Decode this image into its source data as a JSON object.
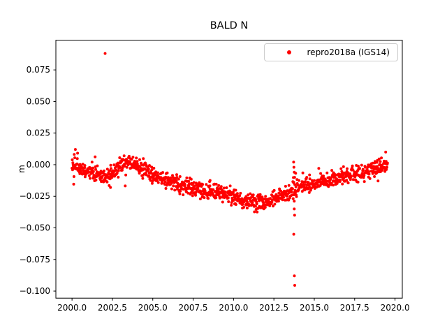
{
  "figure": {
    "title": "BALD N",
    "ylabel": "m",
    "background": "#ffffff"
  },
  "legend": {
    "label": "repro2018a (IGS14)",
    "marker_color": "#ff0000"
  },
  "chart_data": {
    "type": "scatter",
    "title": "BALD N",
    "xlabel": "",
    "ylabel": "m",
    "series_name": "repro2018a (IGS14)",
    "legend_position": "upper right",
    "grid": false,
    "marker": {
      "shape": "dot",
      "color": "#ff0000",
      "radius_px": 2
    },
    "xlim": [
      1999.0,
      2020.45
    ],
    "ylim": [
      -0.1056,
      0.0985
    ],
    "xticks": [
      2000.0,
      2002.5,
      2005.0,
      2007.5,
      2010.0,
      2012.5,
      2015.0,
      2017.5,
      2020.0
    ],
    "xtick_labels": [
      "2000.0",
      "2002.5",
      "2005.0",
      "2007.5",
      "2010.0",
      "2012.5",
      "2015.0",
      "2017.5",
      "2020.0"
    ],
    "yticks": [
      0.075,
      0.05,
      0.025,
      0.0,
      -0.025,
      -0.05,
      -0.075,
      -0.1
    ],
    "ytick_labels": [
      "0.075",
      "0.050",
      "0.025",
      "0.000",
      "−0.025",
      "−0.050",
      "−0.075",
      "−0.100"
    ],
    "start_year": 2000.0,
    "end_year": 2019.55,
    "points_per_year": 58,
    "noise_std": 0.0032,
    "seed": 42,
    "trend_points": [
      [
        2000.0,
        0.002
      ],
      [
        2000.3,
        -0.001
      ],
      [
        2000.7,
        -0.004
      ],
      [
        2001.0,
        -0.004
      ],
      [
        2001.3,
        -0.006
      ],
      [
        2001.7,
        -0.008
      ],
      [
        2002.0,
        -0.01
      ],
      [
        2002.4,
        -0.008
      ],
      [
        2002.8,
        -0.003
      ],
      [
        2003.2,
        0.001
      ],
      [
        2003.6,
        0.002
      ],
      [
        2004.0,
        0.0
      ],
      [
        2004.4,
        -0.004
      ],
      [
        2004.8,
        -0.007
      ],
      [
        2005.2,
        -0.009
      ],
      [
        2005.6,
        -0.011
      ],
      [
        2006.0,
        -0.013
      ],
      [
        2006.5,
        -0.015
      ],
      [
        2007.0,
        -0.017
      ],
      [
        2007.5,
        -0.019
      ],
      [
        2008.0,
        -0.021
      ],
      [
        2008.5,
        -0.022
      ],
      [
        2009.0,
        -0.021
      ],
      [
        2009.3,
        -0.022
      ],
      [
        2009.7,
        -0.024
      ],
      [
        2010.0,
        -0.026
      ],
      [
        2010.4,
        -0.028
      ],
      [
        2010.8,
        -0.029
      ],
      [
        2011.2,
        -0.03
      ],
      [
        2011.6,
        -0.03
      ],
      [
        2012.0,
        -0.03
      ],
      [
        2012.4,
        -0.028
      ],
      [
        2012.8,
        -0.026
      ],
      [
        2013.2,
        -0.024
      ],
      [
        2013.6,
        -0.022
      ],
      [
        2014.0,
        -0.019
      ],
      [
        2014.4,
        -0.017
      ],
      [
        2014.8,
        -0.016
      ],
      [
        2015.2,
        -0.014
      ],
      [
        2015.6,
        -0.013
      ],
      [
        2016.0,
        -0.012
      ],
      [
        2016.4,
        -0.01
      ],
      [
        2016.8,
        -0.009
      ],
      [
        2017.2,
        -0.008
      ],
      [
        2017.6,
        -0.007
      ],
      [
        2018.0,
        -0.006
      ],
      [
        2018.4,
        -0.005
      ],
      [
        2018.8,
        -0.003
      ],
      [
        2019.2,
        -0.002
      ],
      [
        2019.55,
        -0.001
      ]
    ],
    "outliers": [
      [
        2002.05,
        0.088
      ],
      [
        2002.3,
        -0.0165
      ],
      [
        2002.38,
        -0.018
      ],
      [
        2008.55,
        -0.0125
      ],
      [
        2013.72,
        0.002
      ],
      [
        2013.74,
        -0.002
      ],
      [
        2013.76,
        -0.006
      ],
      [
        2013.78,
        -0.01
      ],
      [
        2013.74,
        -0.014
      ],
      [
        2013.76,
        -0.035
      ],
      [
        2013.78,
        -0.04
      ],
      [
        2013.73,
        -0.055
      ],
      [
        2013.77,
        -0.088
      ],
      [
        2013.79,
        -0.0955
      ],
      [
        2019.42,
        0.01
      ]
    ]
  }
}
